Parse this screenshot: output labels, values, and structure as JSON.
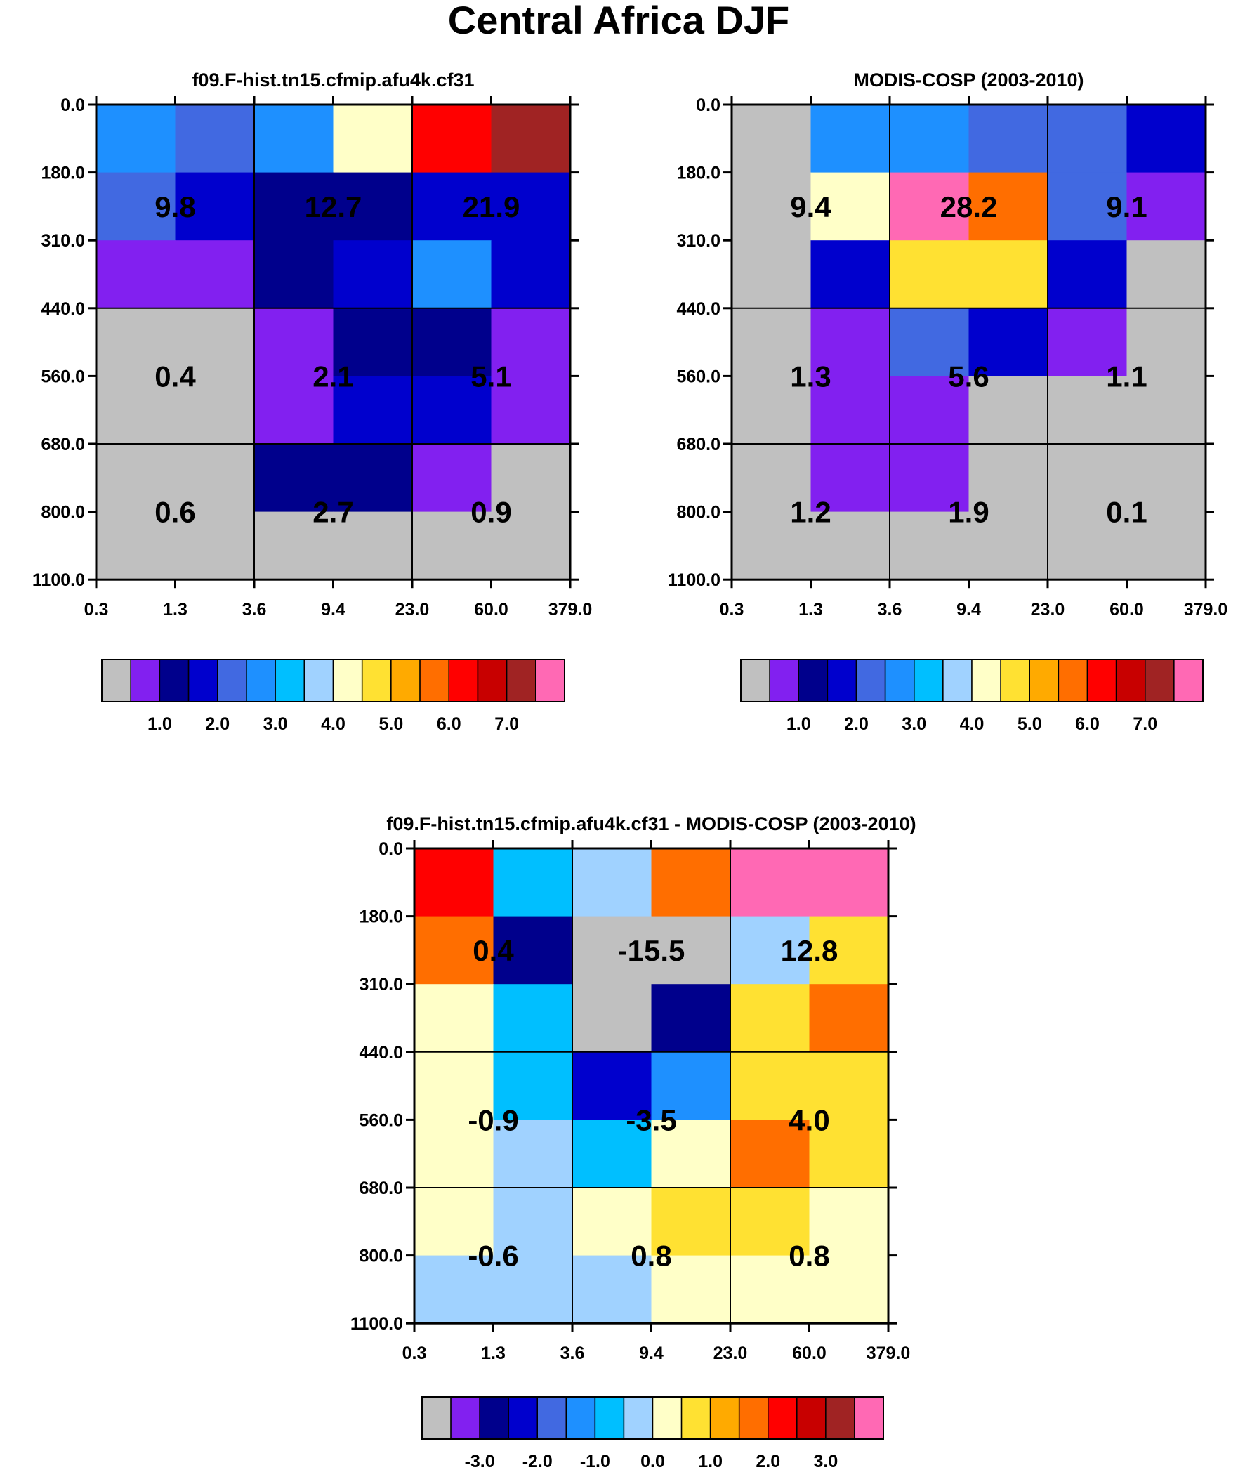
{
  "title": "Central Africa DJF",
  "palette": [
    "#c0c0c0",
    "#8220f0",
    "#00008c",
    "#0000cd",
    "#4169e1",
    "#1e90ff",
    "#00bfff",
    "#a0d2ff",
    "#ffffc8",
    "#ffe132",
    "#ffaa00",
    "#ff6e00",
    "#ff0000",
    "#c80000",
    "#a02323",
    "#ff69b4"
  ],
  "chart_data": [
    {
      "type": "heatmap",
      "title": "f09.F-hist.tn15.cfmip.afu4k.cf31",
      "x_ticks": [
        "0.3",
        "1.3",
        "3.6",
        "9.4",
        "23.0",
        "60.0",
        "379.0"
      ],
      "y_ticks": [
        "0.0",
        "180.0",
        "310.0",
        "440.0",
        "560.0",
        "680.0",
        "800.0",
        "1100.0"
      ],
      "cell_color_index": [
        [
          5,
          4,
          5,
          8,
          12,
          14
        ],
        [
          4,
          3,
          2,
          2,
          3,
          3
        ],
        [
          1,
          1,
          2,
          3,
          5,
          3
        ],
        [
          0,
          0,
          1,
          2,
          2,
          1
        ],
        [
          0,
          0,
          1,
          3,
          3,
          1
        ],
        [
          0,
          0,
          2,
          2,
          1,
          0
        ],
        [
          0,
          0,
          0,
          0,
          0,
          0
        ]
      ],
      "group_values": [
        [
          "9.8",
          "12.7",
          "21.9"
        ],
        [
          "0.4",
          "2.1",
          "5.1"
        ],
        [
          "0.6",
          "2.7",
          "0.9"
        ]
      ],
      "colorbar_labels": [
        "1.0",
        "2.0",
        "3.0",
        "4.0",
        "5.0",
        "6.0",
        "7.0"
      ]
    },
    {
      "type": "heatmap",
      "title": "MODIS-COSP (2003-2010)",
      "x_ticks": [
        "0.3",
        "1.3",
        "3.6",
        "9.4",
        "23.0",
        "60.0",
        "379.0"
      ],
      "y_ticks": [
        "0.0",
        "180.0",
        "310.0",
        "440.0",
        "560.0",
        "680.0",
        "800.0",
        "1100.0"
      ],
      "cell_color_index": [
        [
          0,
          5,
          5,
          4,
          4,
          3
        ],
        [
          0,
          8,
          15,
          11,
          4,
          1
        ],
        [
          0,
          3,
          9,
          9,
          3,
          0
        ],
        [
          0,
          1,
          4,
          3,
          1,
          0
        ],
        [
          0,
          1,
          1,
          0,
          0,
          0
        ],
        [
          0,
          1,
          1,
          0,
          0,
          0
        ],
        [
          0,
          0,
          0,
          0,
          0,
          0
        ]
      ],
      "group_values": [
        [
          "9.4",
          "28.2",
          "9.1"
        ],
        [
          "1.3",
          "5.6",
          "1.1"
        ],
        [
          "1.2",
          "1.9",
          "0.1"
        ]
      ],
      "colorbar_labels": [
        "1.0",
        "2.0",
        "3.0",
        "4.0",
        "5.0",
        "6.0",
        "7.0"
      ]
    },
    {
      "type": "heatmap",
      "title": "f09.F-hist.tn15.cfmip.afu4k.cf31 - MODIS-COSP (2003-2010)",
      "x_ticks": [
        "0.3",
        "1.3",
        "3.6",
        "9.4",
        "23.0",
        "60.0",
        "379.0"
      ],
      "y_ticks": [
        "0.0",
        "180.0",
        "310.0",
        "440.0",
        "560.0",
        "680.0",
        "800.0",
        "1100.0"
      ],
      "cell_color_index": [
        [
          12,
          6,
          7,
          11,
          15,
          15
        ],
        [
          11,
          2,
          0,
          0,
          7,
          9
        ],
        [
          8,
          6,
          0,
          2,
          9,
          11
        ],
        [
          8,
          6,
          3,
          5,
          9,
          9
        ],
        [
          8,
          7,
          6,
          8,
          11,
          9
        ],
        [
          8,
          7,
          8,
          9,
          9,
          8
        ],
        [
          7,
          7,
          7,
          8,
          8,
          8
        ]
      ],
      "group_values": [
        [
          "0.4",
          "-15.5",
          "12.8"
        ],
        [
          "-0.9",
          "-3.5",
          "4.0"
        ],
        [
          "-0.6",
          "0.8",
          "0.8"
        ]
      ],
      "colorbar_labels": [
        "-3.0",
        "-2.0",
        "-1.0",
        "0.0",
        "1.0",
        "2.0",
        "3.0"
      ]
    }
  ]
}
